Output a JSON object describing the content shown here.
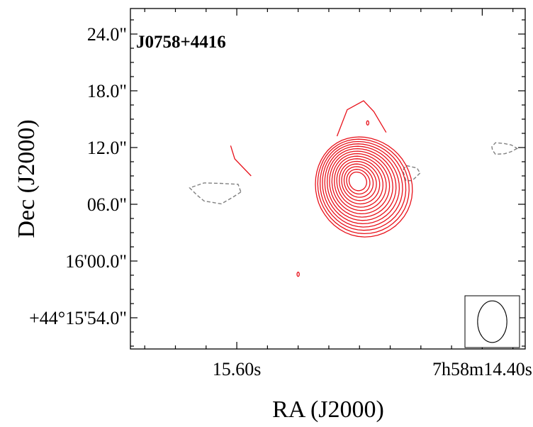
{
  "chart_data": {
    "type": "contour",
    "title": "J0758+4416",
    "xlabel": "RA (J2000)",
    "ylabel": "Dec (J2000)",
    "x_unit": "seconds of RA (7h58m)",
    "y_unit": "arcsec offset from +44°16'00.0\"",
    "xlim": [
      16.12,
      14.19
    ],
    "ylim": [
      -9.3,
      26.7
    ],
    "x_ticks": [
      {
        "value": 15.6,
        "label": "15.60s"
      },
      {
        "value": 14.4,
        "label": "7h58m14.40s"
      }
    ],
    "y_ticks": [
      {
        "value": 24,
        "label": "24.0\""
      },
      {
        "value": 18,
        "label": "18.0\""
      },
      {
        "value": 12,
        "label": "12.0\""
      },
      {
        "value": 6,
        "label": "06.0\""
      },
      {
        "value": 0,
        "label": "16'00.0\""
      },
      {
        "value": -6,
        "label": "+44°15'54.0\""
      }
    ],
    "positive_contours": {
      "color": "#e8121b",
      "center": {
        "x": 15.01,
        "y": 8.45
      },
      "levels": 15,
      "extent": {
        "x": [
          15.59,
          14.65
        ],
        "y": [
          2.2,
          13.5
        ]
      }
    },
    "extensions": {
      "north_lobe": [
        [
          15.11,
          13.2
        ],
        [
          15.06,
          16.0
        ],
        [
          14.98,
          16.95
        ],
        [
          14.93,
          15.8
        ],
        [
          14.87,
          13.6
        ]
      ],
      "west_edge": [
        [
          15.63,
          12.2
        ],
        [
          15.61,
          10.8
        ],
        [
          15.53,
          9.0
        ]
      ]
    },
    "small_features": [
      {
        "type": "positive",
        "x": 15.3,
        "y": -1.4
      },
      {
        "type": "positive",
        "x": 14.96,
        "y": 14.6
      }
    ],
    "negative_contours": {
      "color": "#808080",
      "style": "dashed",
      "regions": [
        {
          "x": 15.7,
          "y": 7.3,
          "rx": 0.12,
          "ry": 1.1
        },
        {
          "x": 14.75,
          "y": 9.3,
          "rx": 0.04,
          "ry": 0.8
        },
        {
          "x": 14.3,
          "y": 11.9,
          "rx": 0.06,
          "ry": 0.6
        }
      ]
    },
    "beam": {
      "major_arcsec": 4.4,
      "minor_arcsec": 3.1,
      "pa_deg": -50,
      "placement": "bottom-right"
    }
  }
}
